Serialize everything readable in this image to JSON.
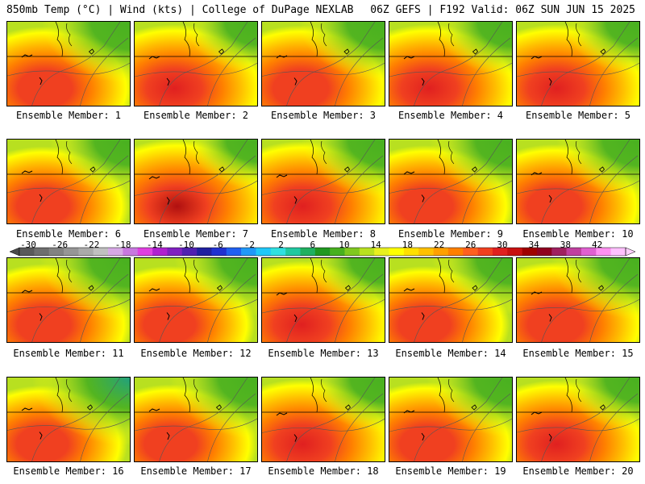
{
  "header": {
    "left": "850mb Temp (°C) | Wind (kts) | College of DuPage NEXLAB",
    "right": "06Z GEFS | F192 Valid: 06Z SUN JUN 15 2025"
  },
  "panels": [
    {
      "label": "Ensemble Member: 1",
      "heat": 0.7,
      "cool_ne": 0.55
    },
    {
      "label": "Ensemble Member: 2",
      "heat": 0.8,
      "cool_ne": 0.25
    },
    {
      "label": "Ensemble Member: 3",
      "heat": 0.75,
      "cool_ne": 0.5
    },
    {
      "label": "Ensemble Member: 4",
      "heat": 0.8,
      "cool_ne": 0.35
    },
    {
      "label": "Ensemble Member: 5",
      "heat": 0.8,
      "cool_ne": 0.3
    },
    {
      "label": "Ensemble Member: 6",
      "heat": 0.6,
      "cool_ne": 0.4
    },
    {
      "label": "Ensemble Member: 7",
      "heat": 0.95,
      "cool_ne": 0.2
    },
    {
      "label": "Ensemble Member: 8",
      "heat": 0.85,
      "cool_ne": 0.45
    },
    {
      "label": "Ensemble Member: 9",
      "heat": 0.65,
      "cool_ne": 0.45
    },
    {
      "label": "Ensemble Member: 10",
      "heat": 0.7,
      "cool_ne": 0.45
    },
    {
      "label": "Ensemble Member: 11",
      "heat": 0.65,
      "cool_ne": 0.6
    },
    {
      "label": "Ensemble Member: 12",
      "heat": 0.55,
      "cool_ne": 0.45
    },
    {
      "label": "Ensemble Member: 13",
      "heat": 0.8,
      "cool_ne": 0.35
    },
    {
      "label": "Ensemble Member: 14",
      "heat": 0.55,
      "cool_ne": 0.4
    },
    {
      "label": "Ensemble Member: 15",
      "heat": 0.75,
      "cool_ne": 0.55
    },
    {
      "label": "Ensemble Member: 16",
      "heat": 0.55,
      "cool_ne": 0.75
    },
    {
      "label": "Ensemble Member: 17",
      "heat": 0.6,
      "cool_ne": 0.55
    },
    {
      "label": "Ensemble Member: 18",
      "heat": 0.85,
      "cool_ne": 0.35
    },
    {
      "label": "Ensemble Member: 19",
      "heat": 0.7,
      "cool_ne": 0.5
    },
    {
      "label": "Ensemble Member: 20",
      "heat": 0.8,
      "cool_ne": 0.35
    }
  ],
  "colorbar": {
    "labels": [
      "-30",
      "-26",
      "-22",
      "-18",
      "-14",
      "-10",
      "-6",
      "-2",
      "2",
      "6",
      "10",
      "14",
      "18",
      "22",
      "26",
      "30",
      "34",
      "38",
      "42"
    ],
    "colors": [
      "#5a5a5a",
      "#6e6e6e",
      "#828282",
      "#969696",
      "#aaaaaa",
      "#c0c0c0",
      "#d7a8e6",
      "#c878e0",
      "#e040e0",
      "#b020d0",
      "#8020c0",
      "#5020b0",
      "#2020a0",
      "#2030d0",
      "#2060f0",
      "#2098f8",
      "#20c8f8",
      "#30e0e0",
      "#20c8a0",
      "#20b060",
      "#209820",
      "#48b020",
      "#80c820",
      "#b8e020",
      "#e8f020",
      "#ffff00",
      "#ffe000",
      "#ffc000",
      "#ffa000",
      "#ff8000",
      "#ff6020",
      "#f04020",
      "#e02020",
      "#c81010",
      "#a00000",
      "#900020",
      "#a02060",
      "#c040a0",
      "#e060d0",
      "#ff90f0",
      "#ffc0ff"
    ]
  }
}
